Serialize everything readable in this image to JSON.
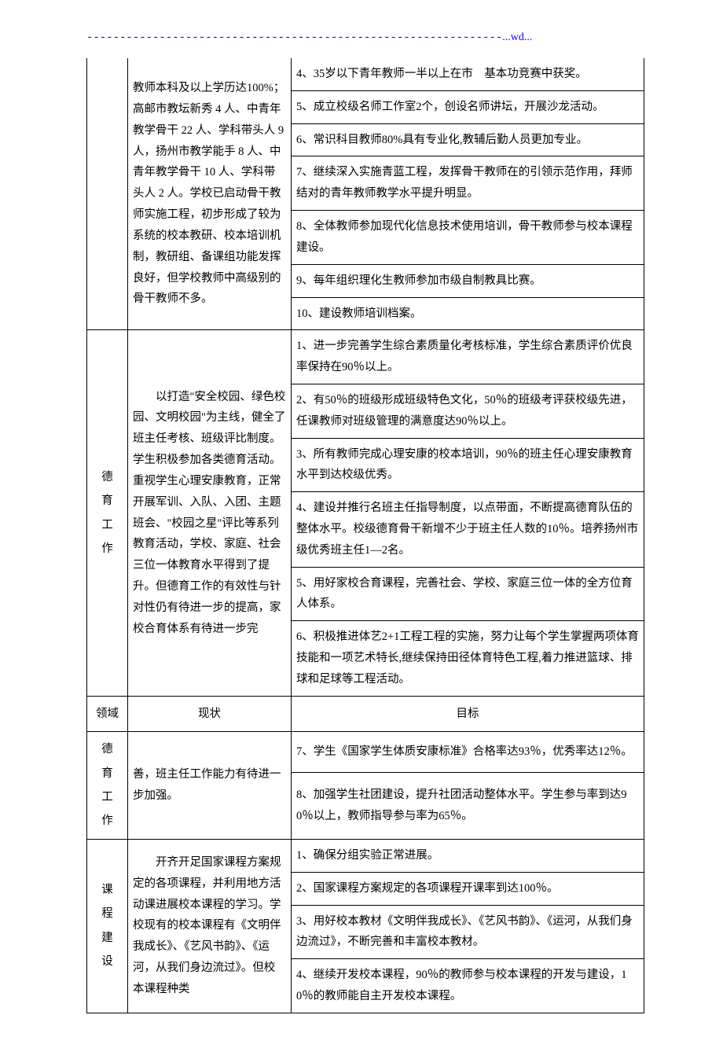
{
  "header": {
    "dashes": "---------------------------------------------------------------",
    "label": "...wd..."
  },
  "section1": {
    "col2_text": "教师本科及以上学历达100%；高邮市教坛新秀 4 人、中青年教学骨干 22 人、学科带头人 9 人，扬州市教学能手 8 人、中青年教学骨干 10 人、学科带头人 2 人。学校已启动骨干教师实施工程，初步形成了较为系统的校本教研、校本培训机制，教研组、备课组功能发挥良好，但学校教师中高级别的骨干教师不多。",
    "items": [
      "4、35岁以下青年教师一半以上在市　基本功竞赛中获奖。",
      "5、成立校级名师工作室2个，创设名师讲坛，开展沙龙活动。",
      "6、常识科目教师80%具有专业化,教辅后勤人员更加专业。",
      "7、继续深入实施青蓝工程，发挥骨干教师在的引领示范作用，拜师结对的青年教师教学水平提升明显。",
      "8、全体教师参加现代化信息技术使用培训，骨干教师参与校本课程建设。",
      "9、每年组织理化生教师参加市级自制教具比赛。",
      "10、建设教师培训档案。"
    ]
  },
  "section2": {
    "label": "德育工作",
    "col2_text": "　　以打造\"安全校园、绿色校园、文明校园\"为主线，健全了班主任考核、班级评比制度。学生积极参加各类德育活动。重视学生心理安康教育，正常开展军训、入队、入团、主题班会、\"校园之星\"评比等系列教育活动，学校、家庭、社会三位一体教育水平得到了提升。但德育工作的有效性与针对性仍有待进一步的提高，家校合育体系有待进一步完",
    "items": [
      "1、进一步完善学生综合素质量化考核标准，学生综合素质评价优良率保持在90％以上。",
      "2、有50％的班级形成班级特色文化，50％的班级考评获校级先进，任课教师对班级管理的满意度达90％以上。",
      "3、所有教师完成心理安康的校本培训，90％的班主任心理安康教育水平到达校级优秀。",
      "4、建设并推行名班主任指导制度，以点带面，不断提高德育队伍的整体水平。校级德育骨干新增不少于班主任人数的10％。培养扬州市级优秀班主任1—2名。",
      "5、用好家校合育课程，完善社会、学校、家庭三位一体的全方位育人体系。",
      "6、积极推进体艺2+1工程工程的实施，努力让每个学生掌握两项体育技能和一项艺术特长,继续保持田径体育特色工程,着力推进篮球、排球和足球等工程活动。"
    ]
  },
  "header_row": {
    "c1": "领域",
    "c2": "现状",
    "c3": "目标"
  },
  "section3": {
    "label": "德育工作",
    "col2_text": "善，班主任工作能力有待进一步加强。",
    "items": [
      "7、学生《国家学生体质安康标准》合格率达93％，优秀率达12％。",
      "8、加强学生社团建设，提升社团活动整体水平。学生参与率到达90％以上，教师指导参与率为65％。"
    ]
  },
  "section4": {
    "label": "课程建设",
    "col2_text": "　　开齐开足国家课程方案规定的各项课程，并利用地方活动课进展校本课程的学习。学校现有的校本课程有《文明伴我成长》、《艺风书韵》、《运河，从我们身边流过》。但校本课程种类",
    "items": [
      "1、确保分组实验正常进展。",
      "2、国家课程方案规定的各项课程开课率到达100％。",
      "3、用好校本教材《文明伴我成长》、《艺风书韵》、《运河，从我们身边流过》，不断完善和丰富校本教材。",
      "4、继续开发校本课程，90％的教师参与校本课程的开发与建设，10％的教师能自主开发校本课程。"
    ]
  }
}
